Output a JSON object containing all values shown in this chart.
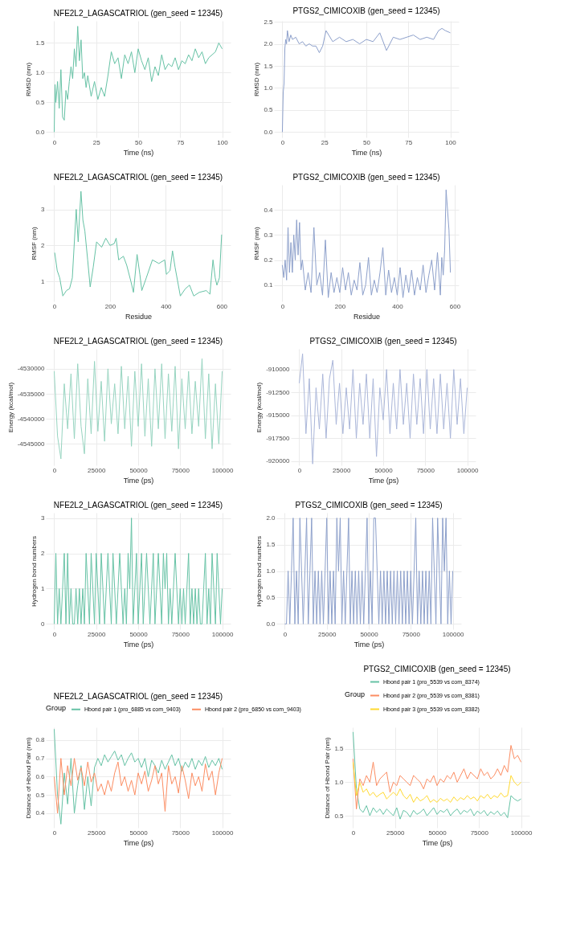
{
  "chart_data": [
    {
      "type": "line",
      "title": "NFE2L2_LAGASCATRIOL (gen_seed = 12345)",
      "xlabel": "Time (ns)",
      "ylabel": "RMSD (nm)",
      "xlim": [
        -5,
        105
      ],
      "ylim": [
        -0.09,
        1.87
      ],
      "xticks": [
        0,
        25,
        50,
        75,
        100
      ],
      "yticks": [
        {
          "value": 0,
          "label": "0.0"
        },
        0.5,
        {
          "value": 1,
          "label": "1.0"
        },
        1.5
      ],
      "grid": true,
      "series": [
        {
          "color": "#66c2a5",
          "x": [
            0,
            0.5,
            1,
            2,
            3,
            4,
            5,
            6,
            7,
            8,
            9,
            10,
            11,
            12,
            13,
            14,
            15,
            16,
            17,
            18,
            19,
            20,
            22,
            24,
            26,
            28,
            30,
            32,
            34,
            36,
            38,
            40,
            42,
            44,
            46,
            48,
            50,
            52,
            54,
            56,
            58,
            60,
            62,
            64,
            66,
            68,
            70,
            72,
            74,
            76,
            78,
            80,
            82,
            84,
            86,
            88,
            90,
            92,
            94,
            96,
            98,
            100
          ],
          "values": [
            0,
            0.8,
            0.5,
            0.85,
            0.4,
            1.05,
            0.25,
            0.2,
            0.7,
            0.55,
            0.85,
            1.1,
            0.9,
            1.4,
            1.1,
            1.78,
            1.2,
            1.55,
            0.9,
            1.0,
            0.75,
            0.95,
            0.6,
            0.85,
            0.55,
            0.75,
            0.6,
            0.95,
            1.35,
            1.15,
            1.25,
            0.9,
            1.3,
            1.15,
            1.35,
            1.0,
            1.4,
            1.2,
            1.05,
            1.25,
            0.85,
            1.1,
            0.95,
            1.3,
            1.05,
            1.15,
            1.1,
            1.25,
            1.05,
            1.2,
            1.15,
            1.3,
            1.2,
            1.4,
            1.25,
            1.35,
            1.15,
            1.25,
            1.3,
            1.35,
            1.5,
            1.4
          ]
        }
      ]
    },
    {
      "type": "line",
      "title": "PTGS2_CIMICOXIB (gen_seed = 12345)",
      "xlabel": "Time (ns)",
      "ylabel": "RMSD (nm)",
      "xlim": [
        -5,
        105
      ],
      "ylim": [
        -0.12,
        2.52
      ],
      "xticks": [
        0,
        25,
        50,
        75,
        100
      ],
      "yticks": [
        {
          "value": 0,
          "label": "0.0"
        },
        0.5,
        {
          "value": 1,
          "label": "1.0"
        },
        1.5,
        {
          "value": 2,
          "label": "2.0"
        },
        2.5
      ],
      "grid": true,
      "series": [
        {
          "color": "#8da0cb",
          "x": [
            0,
            0.5,
            1,
            1.5,
            2,
            2.5,
            3,
            4,
            5,
            6,
            8,
            10,
            12,
            14,
            16,
            18,
            20,
            22,
            24,
            26,
            30,
            34,
            38,
            42,
            46,
            50,
            54,
            58,
            62,
            66,
            70,
            74,
            78,
            82,
            86,
            90,
            93,
            95,
            97,
            100
          ],
          "values": [
            0,
            0.9,
            1.1,
            1.9,
            2.1,
            2.0,
            2.3,
            2.05,
            2.2,
            2.1,
            2.15,
            2.0,
            2.05,
            1.95,
            2.0,
            1.95,
            1.95,
            1.8,
            1.95,
            2.3,
            2.05,
            2.15,
            2.05,
            2.1,
            2.0,
            2.1,
            2.05,
            2.25,
            1.85,
            2.15,
            2.1,
            2.15,
            2.2,
            2.1,
            2.15,
            2.1,
            2.3,
            2.35,
            2.3,
            2.25
          ]
        }
      ]
    },
    {
      "type": "line",
      "title": "NFE2L2_LAGASCATRIOL (gen_seed = 12345)",
      "xlabel": "Residue",
      "ylabel": "RMSF (nm)",
      "xlim": [
        -30,
        632
      ],
      "ylim": [
        0.45,
        3.68
      ],
      "xticks": [
        0,
        200,
        400,
        600
      ],
      "yticks": [
        1,
        2,
        3
      ],
      "grid": true,
      "series": [
        {
          "color": "#66c2a5",
          "x": [
            2,
            11,
            20,
            31,
            44,
            55,
            65,
            79,
            86,
            96,
            103,
            110,
            120,
            129,
            140,
            152,
            170,
            185,
            200,
            215,
            222,
            231,
            248,
            260,
            275,
            284,
            297,
            307,
            314,
            330,
            352,
            375,
            396,
            402,
            415,
            424,
            433,
            452,
            470,
            485,
            500,
            520,
            545,
            558,
            569,
            577,
            583,
            592,
            600
          ],
          "values": [
            1.8,
            1.3,
            1.1,
            0.6,
            0.75,
            0.8,
            1.1,
            3.0,
            2.1,
            3.5,
            2.7,
            2.4,
            1.6,
            0.85,
            1.4,
            2.1,
            1.95,
            2.2,
            2.0,
            2.05,
            2.2,
            1.6,
            1.7,
            1.45,
            1.0,
            0.7,
            1.75,
            1.2,
            0.75,
            1.1,
            1.6,
            1.5,
            1.6,
            1.2,
            1.3,
            1.85,
            1.4,
            0.6,
            0.8,
            0.9,
            0.6,
            0.7,
            0.75,
            0.65,
            1.6,
            1.1,
            0.9,
            1.1,
            2.3
          ]
        }
      ]
    },
    {
      "type": "line",
      "title": "PTGS2_CIMICOXIB (gen_seed = 12345)",
      "xlabel": "Residue",
      "ylabel": "RMSF (nm)",
      "xlim": [
        -29,
        614
      ],
      "ylim": [
        0.035,
        0.5
      ],
      "xticks": [
        0,
        200,
        400,
        600
      ],
      "yticks": [
        0.1,
        0.2,
        0.3,
        0.4
      ],
      "grid": true,
      "series": [
        {
          "color": "#8da0cb",
          "x": [
            0,
            5,
            10,
            15,
            20,
            25,
            30,
            35,
            40,
            45,
            50,
            55,
            60,
            65,
            70,
            80,
            90,
            100,
            110,
            120,
            130,
            140,
            150,
            160,
            170,
            180,
            190,
            200,
            210,
            220,
            230,
            240,
            250,
            260,
            270,
            280,
            290,
            300,
            310,
            320,
            330,
            340,
            350,
            360,
            370,
            380,
            390,
            400,
            410,
            420,
            430,
            440,
            450,
            460,
            470,
            480,
            490,
            500,
            510,
            520,
            530,
            540,
            550,
            555,
            560,
            565,
            570,
            575,
            580,
            585
          ],
          "values": [
            0.18,
            0.13,
            0.2,
            0.12,
            0.33,
            0.15,
            0.27,
            0.15,
            0.3,
            0.2,
            0.36,
            0.22,
            0.35,
            0.16,
            0.2,
            0.08,
            0.15,
            0.07,
            0.33,
            0.1,
            0.15,
            0.06,
            0.28,
            0.05,
            0.15,
            0.07,
            0.13,
            0.07,
            0.17,
            0.08,
            0.15,
            0.06,
            0.12,
            0.08,
            0.19,
            0.06,
            0.1,
            0.21,
            0.06,
            0.12,
            0.07,
            0.15,
            0.25,
            0.06,
            0.16,
            0.07,
            0.13,
            0.06,
            0.17,
            0.05,
            0.14,
            0.07,
            0.16,
            0.06,
            0.13,
            0.08,
            0.18,
            0.07,
            0.14,
            0.2,
            0.08,
            0.23,
            0.06,
            0.21,
            0.14,
            0.24,
            0.48,
            0.4,
            0.32,
            0.15
          ]
        }
      ]
    },
    {
      "type": "line",
      "title": "NFE2L2_LAGASCATRIOL (gen_seed = 12345)",
      "xlabel": "Time (ps)",
      "ylabel": "Energy (kcal/mol)",
      "xlim": [
        -5000,
        105000
      ],
      "ylim": [
        -4549300,
        -4526000
      ],
      "xticks": [
        0,
        25000,
        50000,
        75000,
        100000
      ],
      "yticks": [
        -4530000,
        -4535000,
        -4540000,
        -4545000
      ],
      "grid": true,
      "x": [
        0,
        2000,
        4000,
        6000,
        8000,
        10000,
        12000,
        14000,
        16000,
        18000,
        20000,
        22000,
        24000,
        26000,
        28000,
        30000,
        32000,
        34000,
        36000,
        38000,
        40000,
        42000,
        44000,
        46000,
        48000,
        50000,
        52000,
        54000,
        56000,
        58000,
        60000,
        62000,
        64000,
        66000,
        68000,
        70000,
        72000,
        74000,
        76000,
        78000,
        80000,
        82000,
        84000,
        86000,
        88000,
        90000,
        92000,
        94000,
        96000,
        98000,
        100000
      ],
      "series": [
        {
          "color": "#97d4c0",
          "values": [
            -4530500,
            -4543500,
            -4548000,
            -4533000,
            -4542000,
            -4531000,
            -4544000,
            -4529000,
            -4541500,
            -4547000,
            -4532000,
            -4543000,
            -4528500,
            -4542500,
            -4532500,
            -4544500,
            -4530000,
            -4541000,
            -4533000,
            -4543000,
            -4529500,
            -4542000,
            -4531500,
            -4545500,
            -4530500,
            -4541500,
            -4529000,
            -4543500,
            -4532000,
            -4545500,
            -4530000,
            -4542000,
            -4529000,
            -4544000,
            -4531000,
            -4542500,
            -4529500,
            -4546000,
            -4532000,
            -4542000,
            -4530500,
            -4543000,
            -4532500,
            -4541500,
            -4528000,
            -4544000,
            -4531000,
            -4546000,
            -4533000,
            -4545000,
            -4530500
          ]
        }
      ]
    },
    {
      "type": "line",
      "title": "PTGS2_CIMICOXIB (gen_seed = 12345)",
      "xlabel": "Time (ps)",
      "ylabel": "Energy (kcal/mol)",
      "xlim": [
        -5000,
        105000
      ],
      "ylim": [
        -920450,
        -907750
      ],
      "xticks": [
        0,
        25000,
        50000,
        75000,
        100000
      ],
      "yticks": [
        -910000,
        -912500,
        -915000,
        -917500,
        -920000
      ],
      "grid": true,
      "x": [
        0,
        2000,
        4000,
        6000,
        8000,
        10000,
        12000,
        14000,
        16000,
        18000,
        20000,
        22000,
        24000,
        26000,
        28000,
        30000,
        32000,
        34000,
        36000,
        38000,
        40000,
        42000,
        44000,
        46000,
        48000,
        50000,
        52000,
        54000,
        56000,
        58000,
        60000,
        62000,
        64000,
        66000,
        68000,
        70000,
        72000,
        74000,
        76000,
        78000,
        80000,
        82000,
        84000,
        86000,
        88000,
        90000,
        92000,
        94000,
        96000,
        98000,
        100000
      ],
      "series": [
        {
          "color": "#aab6d9",
          "values": [
            -911500,
            -908300,
            -917000,
            -911000,
            -920300,
            -912000,
            -916500,
            -910500,
            -917500,
            -911000,
            -909000,
            -916000,
            -911500,
            -917000,
            -912000,
            -916500,
            -910000,
            -917500,
            -911500,
            -916000,
            -910500,
            -917500,
            -911000,
            -919500,
            -912000,
            -915500,
            -910000,
            -917000,
            -911500,
            -916500,
            -910000,
            -916000,
            -911500,
            -917500,
            -910500,
            -916000,
            -911000,
            -917000,
            -910000,
            -916500,
            -911000,
            -917000,
            -910500,
            -916500,
            -911500,
            -917500,
            -910000,
            -916000,
            -911000,
            -917000,
            -912000
          ]
        }
      ]
    },
    {
      "type": "line",
      "title": "NFE2L2_LAGASCATRIOL (gen_seed = 12345)",
      "xlabel": "Time (ps)",
      "ylabel": "Hydrogen bond numbers",
      "xlim": [
        -5000,
        105000
      ],
      "ylim": [
        -0.15,
        3.15
      ],
      "xticks": [
        0,
        25000,
        50000,
        75000,
        100000
      ],
      "yticks": [
        0,
        1,
        2,
        3
      ],
      "grid": true,
      "x": [
        0,
        1000,
        2000,
        3000,
        4000,
        5000,
        6000,
        7000,
        8000,
        9000,
        10000,
        11000,
        12000,
        13000,
        14000,
        15000,
        16000,
        17000,
        18000,
        19000,
        20000,
        21000,
        22000,
        23000,
        24000,
        25000,
        26000,
        27000,
        28000,
        29000,
        30000,
        31000,
        32000,
        33000,
        34000,
        35000,
        36000,
        37000,
        38000,
        39000,
        40000,
        41000,
        42000,
        43000,
        44000,
        45000,
        46000,
        47000,
        48000,
        49000,
        50000,
        51000,
        52000,
        53000,
        54000,
        55000,
        56000,
        57000,
        58000,
        59000,
        60000,
        61000,
        62000,
        63000,
        64000,
        65000,
        66000,
        67000,
        68000,
        69000,
        70000,
        71000,
        72000,
        73000,
        74000,
        75000,
        76000,
        77000,
        78000,
        79000,
        80000,
        81000,
        82000,
        83000,
        84000,
        85000,
        86000,
        87000,
        88000,
        89000,
        90000,
        91000,
        92000,
        93000,
        94000,
        95000,
        96000,
        97000,
        98000,
        99000,
        100000
      ],
      "series": [
        {
          "color": "#66c2a5",
          "values": [
            0,
            2,
            0,
            1,
            0,
            1,
            2,
            0,
            2,
            0,
            1,
            0,
            0,
            1,
            0,
            1,
            0,
            1,
            0,
            2,
            1,
            0,
            2,
            1,
            0,
            2,
            1,
            0,
            2,
            1,
            0,
            1,
            2,
            1,
            0,
            2,
            1,
            0,
            1,
            2,
            1,
            0,
            1,
            0,
            2,
            1,
            3,
            0,
            1,
            2,
            0,
            1,
            2,
            0,
            1,
            2,
            1,
            0,
            1,
            2,
            0,
            1,
            2,
            1,
            0,
            2,
            1,
            2,
            0,
            1,
            0,
            1,
            2,
            1,
            0,
            1,
            0,
            1,
            0,
            1,
            2,
            0,
            1,
            0,
            1,
            0,
            1,
            0,
            0,
            1,
            2,
            0,
            1,
            0,
            2,
            1,
            0,
            2,
            1,
            0,
            1
          ]
        }
      ]
    },
    {
      "type": "line",
      "title": "PTGS2_CIMICOXIB (gen_seed = 12345)",
      "xlabel": "Time (ps)",
      "ylabel": "Hydrogen bond numbers",
      "xlim": [
        -5000,
        105000
      ],
      "ylim": [
        -0.1,
        2.1
      ],
      "xticks": [
        0,
        25000,
        50000,
        75000,
        100000
      ],
      "yticks": [
        {
          "value": 0,
          "label": "0.0"
        },
        0.5,
        {
          "value": 1,
          "label": "1.0"
        },
        1.5,
        {
          "value": 2,
          "label": "2.0"
        }
      ],
      "grid": true,
      "x": [
        0,
        1000,
        2000,
        3000,
        4000,
        5000,
        6000,
        7000,
        8000,
        9000,
        10000,
        11000,
        12000,
        13000,
        14000,
        15000,
        16000,
        17000,
        18000,
        19000,
        20000,
        21000,
        22000,
        23000,
        24000,
        25000,
        26000,
        27000,
        28000,
        29000,
        30000,
        31000,
        32000,
        33000,
        34000,
        35000,
        36000,
        37000,
        38000,
        39000,
        40000,
        41000,
        42000,
        43000,
        44000,
        45000,
        46000,
        47000,
        48000,
        49000,
        50000,
        51000,
        52000,
        53000,
        54000,
        55000,
        56000,
        57000,
        58000,
        59000,
        60000,
        61000,
        62000,
        63000,
        64000,
        65000,
        66000,
        67000,
        68000,
        69000,
        70000,
        71000,
        72000,
        73000,
        74000,
        75000,
        76000,
        77000,
        78000,
        79000,
        80000,
        81000,
        82000,
        83000,
        84000,
        85000,
        86000,
        87000,
        88000,
        89000,
        90000,
        91000,
        92000,
        93000,
        94000,
        95000,
        96000,
        97000,
        98000,
        99000,
        100000
      ],
      "series": [
        {
          "color": "#8da0cb",
          "values": [
            0,
            0,
            1,
            0,
            1,
            2,
            0,
            1,
            0,
            2,
            1,
            0,
            1,
            2,
            0,
            1,
            2,
            0,
            1,
            0,
            1,
            0,
            1,
            0,
            1,
            2,
            0,
            1,
            0,
            1,
            0,
            2,
            1,
            2,
            0,
            1,
            0,
            1,
            2,
            0,
            1,
            0,
            1,
            0,
            1,
            0,
            1,
            0,
            1,
            2,
            0,
            1,
            0,
            2,
            2,
            1,
            0,
            1,
            0,
            1,
            0,
            1,
            0,
            1,
            0,
            1,
            0,
            1,
            0,
            1,
            0,
            1,
            0,
            1,
            0,
            1,
            0,
            1,
            2,
            0,
            1,
            0,
            1,
            0,
            1,
            0,
            1,
            0,
            2,
            1,
            0,
            2,
            1,
            0,
            2,
            1,
            2,
            0,
            1,
            0,
            1
          ]
        }
      ]
    },
    {
      "type": "line",
      "title": "NFE2L2_LAGASCATRIOL (gen_seed = 12345)",
      "xlabel": "Time (ps)",
      "ylabel": "Distance of Hbond Pair (nm)",
      "legend_title": "Group",
      "legend": "top",
      "xlim": [
        -5000,
        105000
      ],
      "ylim": [
        0.32,
        0.87
      ],
      "xticks": [
        0,
        25000,
        50000,
        75000,
        100000
      ],
      "yticks": [
        0.4,
        0.5,
        0.6,
        0.7,
        0.8
      ],
      "grid": true,
      "x": [
        0,
        2000,
        4000,
        6000,
        8000,
        10000,
        12000,
        14000,
        16000,
        18000,
        20000,
        22000,
        24000,
        26000,
        28000,
        30000,
        32000,
        34000,
        36000,
        38000,
        40000,
        42000,
        44000,
        46000,
        48000,
        50000,
        52000,
        54000,
        56000,
        58000,
        60000,
        62000,
        64000,
        66000,
        68000,
        70000,
        72000,
        74000,
        76000,
        78000,
        80000,
        82000,
        84000,
        86000,
        88000,
        90000,
        92000,
        94000,
        96000,
        98000,
        100000
      ],
      "series": [
        {
          "name": "Hbond pair 1 (pro_6885 vs com_9403)",
          "color": "#66c2a5",
          "values": [
            0.86,
            0.5,
            0.34,
            0.62,
            0.45,
            0.7,
            0.4,
            0.55,
            0.66,
            0.42,
            0.6,
            0.44,
            0.65,
            0.7,
            0.66,
            0.72,
            0.68,
            0.71,
            0.74,
            0.69,
            0.72,
            0.66,
            0.7,
            0.73,
            0.68,
            0.7,
            0.65,
            0.7,
            0.6,
            0.69,
            0.66,
            0.62,
            0.69,
            0.64,
            0.68,
            0.72,
            0.66,
            0.7,
            0.63,
            0.68,
            0.65,
            0.7,
            0.64,
            0.69,
            0.66,
            0.71,
            0.65,
            0.69,
            0.66,
            0.7,
            0.64
          ]
        },
        {
          "name": "Hbond pair 2 (pro_6850 vs com_9403)",
          "color": "#fc8d62",
          "values": [
            0.6,
            0.4,
            0.7,
            0.5,
            0.66,
            0.55,
            0.7,
            0.58,
            0.65,
            0.55,
            0.68,
            0.57,
            0.62,
            0.52,
            0.56,
            0.5,
            0.58,
            0.52,
            0.62,
            0.68,
            0.55,
            0.6,
            0.52,
            0.58,
            0.5,
            0.62,
            0.56,
            0.63,
            0.52,
            0.58,
            0.66,
            0.56,
            0.62,
            0.41,
            0.66,
            0.56,
            0.6,
            0.51,
            0.66,
            0.58,
            0.48,
            0.62,
            0.55,
            0.6,
            0.52,
            0.67,
            0.58,
            0.63,
            0.5,
            0.62,
            0.7
          ]
        }
      ]
    },
    {
      "type": "line",
      "title": "PTGS2_CIMICOXIB (gen_seed = 12345)",
      "xlabel": "Time (ps)",
      "ylabel": "Distance of Hbond Pair (nm)",
      "legend_title": "Group",
      "legend": "top",
      "xlim": [
        -5000,
        105000
      ],
      "ylim": [
        0.32,
        1.82
      ],
      "xticks": [
        0,
        25000,
        50000,
        75000,
        100000
      ],
      "yticks": [
        0.5,
        {
          "value": 1,
          "label": "1.0"
        },
        1.5
      ],
      "grid": true,
      "x": [
        0,
        2000,
        4000,
        6000,
        8000,
        10000,
        12000,
        14000,
        16000,
        18000,
        20000,
        22000,
        24000,
        26000,
        28000,
        30000,
        32000,
        34000,
        36000,
        38000,
        40000,
        42000,
        44000,
        46000,
        48000,
        50000,
        52000,
        54000,
        56000,
        58000,
        60000,
        62000,
        64000,
        66000,
        68000,
        70000,
        72000,
        74000,
        76000,
        78000,
        80000,
        82000,
        84000,
        86000,
        88000,
        90000,
        92000,
        94000,
        96000,
        98000,
        100000
      ],
      "series": [
        {
          "name": "Hbond pair 1 (pro_5539 vs com_8374)",
          "color": "#66c2a5",
          "values": [
            1.75,
            0.9,
            0.6,
            0.55,
            0.65,
            0.5,
            0.62,
            0.55,
            0.6,
            0.52,
            0.6,
            0.55,
            0.5,
            0.62,
            0.45,
            0.58,
            0.55,
            0.48,
            0.58,
            0.52,
            0.55,
            0.6,
            0.5,
            0.56,
            0.62,
            0.52,
            0.58,
            0.55,
            0.6,
            0.5,
            0.56,
            0.6,
            0.52,
            0.58,
            0.55,
            0.6,
            0.5,
            0.57,
            0.53,
            0.58,
            0.5,
            0.56,
            0.52,
            0.57,
            0.5,
            0.55,
            0.47,
            0.8,
            0.75,
            0.72,
            0.75
          ]
        },
        {
          "name": "Hbond pair 2 (pro_5539 vs com_8381)",
          "color": "#fc8d62",
          "values": [
            1.35,
            0.6,
            1.05,
            0.95,
            1.1,
            1.0,
            1.3,
            0.95,
            1.05,
            1.1,
            1.15,
            0.85,
            1.0,
            0.95,
            1.1,
            1.05,
            1.0,
            0.95,
            1.1,
            1.05,
            1.0,
            0.9,
            1.05,
            1.0,
            1.1,
            0.95,
            1.05,
            1.0,
            1.1,
            1.05,
            1.15,
            1.0,
            1.1,
            1.2,
            1.05,
            1.15,
            1.1,
            1.05,
            1.2,
            1.1,
            1.15,
            1.05,
            1.1,
            1.2,
            1.1,
            1.25,
            1.15,
            1.55,
            1.35,
            1.4,
            1.3
          ]
        },
        {
          "name": "Hbond pair 3 (pro_5539 vs com_8382)",
          "color": "#ffd92f",
          "values": [
            1.3,
            0.8,
            1.0,
            0.85,
            0.9,
            0.8,
            0.85,
            0.78,
            0.82,
            0.85,
            0.75,
            0.8,
            0.85,
            0.8,
            0.9,
            0.8,
            0.75,
            0.82,
            0.7,
            0.78,
            0.72,
            0.75,
            0.8,
            0.7,
            0.74,
            0.7,
            0.76,
            0.72,
            0.75,
            0.7,
            0.78,
            0.72,
            0.77,
            0.74,
            0.8,
            0.75,
            0.78,
            0.72,
            0.8,
            0.76,
            0.82,
            0.75,
            0.8,
            0.77,
            0.84,
            0.78,
            0.8,
            1.1,
            1.0,
            0.95,
            1.0
          ]
        }
      ]
    }
  ]
}
